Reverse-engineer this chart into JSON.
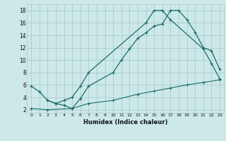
{
  "xlabel": "Humidex (Indice chaleur)",
  "bg_color": "#cce8e8",
  "grid_color": "#aacccc",
  "line_color": "#1a6e6a",
  "xlim": [
    -0.5,
    23.5
  ],
  "ylim": [
    1.5,
    19.0
  ],
  "yticks": [
    2,
    4,
    6,
    8,
    10,
    12,
    14,
    16,
    18
  ],
  "xticks": [
    0,
    1,
    2,
    3,
    4,
    5,
    6,
    7,
    8,
    9,
    10,
    11,
    12,
    13,
    14,
    15,
    16,
    17,
    18,
    19,
    20,
    21,
    22,
    23
  ],
  "line1_x": [
    0,
    1,
    2,
    3,
    4,
    5,
    6,
    7,
    10,
    11,
    12,
    13,
    14,
    15,
    16,
    17,
    18,
    19,
    20,
    21,
    22,
    23
  ],
  "line1_y": [
    5.8,
    4.9,
    3.5,
    3.0,
    2.7,
    2.2,
    3.8,
    5.8,
    8.0,
    10.0,
    11.8,
    13.5,
    14.4,
    15.5,
    15.8,
    18.0,
    18.0,
    16.5,
    14.5,
    12.0,
    11.5,
    8.5
  ],
  "line2_x": [
    2,
    3,
    4,
    5,
    6,
    7,
    14,
    15,
    16,
    17,
    21,
    22,
    23
  ],
  "line2_y": [
    3.5,
    3.0,
    3.5,
    4.0,
    5.8,
    8.0,
    16.0,
    18.0,
    18.0,
    16.5,
    11.8,
    9.5,
    7.0
  ],
  "line3_x": [
    0,
    2,
    5,
    7,
    10,
    13,
    15,
    17,
    19,
    21,
    23
  ],
  "line3_y": [
    2.2,
    2.0,
    2.2,
    3.0,
    3.5,
    4.5,
    5.0,
    5.5,
    6.0,
    6.4,
    6.8
  ]
}
